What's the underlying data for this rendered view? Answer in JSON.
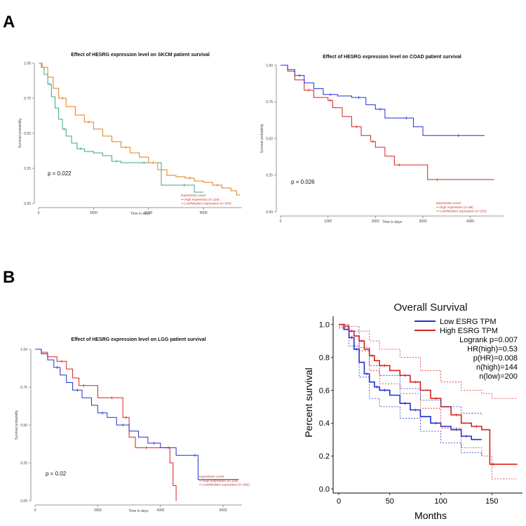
{
  "panels": {
    "a": "A",
    "b": "B"
  },
  "colors": {
    "orange": "#E07B1E",
    "teal": "#3AA68A",
    "blue": "#1F2FD1",
    "red": "#D52020",
    "axis": "#7a7a7a",
    "legend": "#C0392B"
  },
  "chart_data": [
    {
      "id": "skcm",
      "type": "line",
      "title": "Effect of HESRG expression level on SKCM patient survival",
      "xlabel": "Time in days",
      "ylabel": "Survival probability",
      "xlim": [
        0,
        11100
      ],
      "ylim": [
        0,
        1
      ],
      "xticks": [
        0,
        3000,
        6000,
        9000
      ],
      "yticks": [
        0,
        0.25,
        0.5,
        0.75,
        1.0
      ],
      "xtick_labels": [
        "0",
        "3000",
        "6000",
        "9000"
      ],
      "ytick_labels": [
        "0.00",
        "0.25",
        "0.50",
        "0.75",
        "1.00"
      ],
      "pvalue": "p = 0.022",
      "legend_title": "Expression Level",
      "legend": [
        "High expression (n=116)",
        "Low/Medium expression (n=343)"
      ],
      "series": [
        {
          "name": "High expression (n=116)",
          "color": "#3AA68A",
          "x": [
            0,
            150,
            300,
            500,
            700,
            900,
            1100,
            1300,
            1500,
            1800,
            2100,
            2500,
            3000,
            3500,
            4000,
            4500,
            5000,
            5500,
            6000,
            6600,
            6700,
            7500,
            8400,
            8500,
            9000
          ],
          "y": [
            1.0,
            0.97,
            0.92,
            0.85,
            0.76,
            0.68,
            0.6,
            0.53,
            0.48,
            0.43,
            0.39,
            0.37,
            0.36,
            0.34,
            0.3,
            0.29,
            0.29,
            0.29,
            0.29,
            0.29,
            0.13,
            0.13,
            0.13,
            0.08,
            0.08
          ]
        },
        {
          "name": "Low/Medium expression (n=343)",
          "color": "#E07B1E",
          "x": [
            0,
            200,
            500,
            800,
            1100,
            1500,
            2000,
            2500,
            3000,
            3500,
            4000,
            4500,
            5000,
            5500,
            6000,
            6500,
            7000,
            7500,
            8000,
            8500,
            9000,
            9500,
            10000,
            10500,
            10800,
            11000
          ],
          "y": [
            1.0,
            0.97,
            0.9,
            0.82,
            0.75,
            0.69,
            0.63,
            0.58,
            0.53,
            0.48,
            0.44,
            0.4,
            0.36,
            0.33,
            0.29,
            0.24,
            0.2,
            0.19,
            0.18,
            0.16,
            0.15,
            0.13,
            0.11,
            0.09,
            0.06,
            0.06
          ]
        }
      ]
    },
    {
      "id": "coad",
      "type": "line",
      "title": "Effect of HESRG expression level on COAD patient survival",
      "xlabel": "Time in days",
      "ylabel": "Survival probability",
      "xlim": [
        0,
        4700
      ],
      "ylim": [
        0,
        1
      ],
      "xticks": [
        0,
        1000,
        2000,
        3000,
        4000
      ],
      "yticks": [
        0,
        0.25,
        0.5,
        0.75,
        1.0
      ],
      "xtick_labels": [
        "0",
        "1000",
        "2000",
        "3000",
        "4000"
      ],
      "ytick_labels": [
        "0.00",
        "0.25",
        "0.50",
        "0.75",
        "1.00"
      ],
      "pvalue": "p = 0.026",
      "legend_title": "Expression Level",
      "legend": [
        "High expression (n=69)",
        "Low/Medium expression (n=210)"
      ],
      "series": [
        {
          "name": "High expression (n=69)",
          "color": "#D52020",
          "x": [
            0,
            150,
            300,
            500,
            700,
            900,
            1000,
            1100,
            1300,
            1500,
            1700,
            1900,
            2000,
            2200,
            2400,
            2600,
            3000,
            3100,
            3500,
            4000,
            4500
          ],
          "y": [
            1.0,
            0.96,
            0.9,
            0.83,
            0.78,
            0.78,
            0.76,
            0.71,
            0.65,
            0.58,
            0.52,
            0.48,
            0.44,
            0.38,
            0.32,
            0.32,
            0.32,
            0.22,
            0.22,
            0.22,
            0.22
          ]
        },
        {
          "name": "Low/Medium expression (n=210)",
          "color": "#1F2FD1",
          "x": [
            0,
            150,
            300,
            500,
            700,
            900,
            1200,
            1500,
            1800,
            2000,
            2200,
            2500,
            2800,
            3000,
            3500,
            4000,
            4300
          ],
          "y": [
            1.0,
            0.97,
            0.93,
            0.88,
            0.84,
            0.8,
            0.79,
            0.78,
            0.73,
            0.7,
            0.64,
            0.64,
            0.58,
            0.52,
            0.52,
            0.52,
            0.52
          ]
        }
      ]
    },
    {
      "id": "lgg",
      "type": "line",
      "title": "Effect of HESRG expression level on LGG patient survival",
      "xlabel": "Time in days",
      "ylabel": "Survival probability",
      "xlim": [
        0,
        6600
      ],
      "ylim": [
        0,
        1
      ],
      "xticks": [
        0,
        2000,
        4000,
        6000
      ],
      "yticks": [
        0,
        0.25,
        0.5,
        0.75,
        1.0
      ],
      "xtick_labels": [
        "0",
        "2000",
        "4000",
        "6000"
      ],
      "ytick_labels": [
        "0.00",
        "0.25",
        "0.50",
        "0.75",
        "1.00"
      ],
      "pvalue": "p = 0.02",
      "legend_title": "Expression Level",
      "legend": [
        "High expression (n=129)",
        "Low/Medium expression (n=382)"
      ],
      "series": [
        {
          "name": "High expression (n=129)",
          "color": "#D52020",
          "x": [
            0,
            200,
            400,
            700,
            1000,
            1200,
            1400,
            1700,
            2000,
            2300,
            2600,
            2800,
            3000,
            3200,
            3400,
            3700,
            4000,
            4200,
            4300,
            4400,
            4500
          ],
          "y": [
            1.0,
            0.98,
            0.95,
            0.92,
            0.87,
            0.81,
            0.76,
            0.76,
            0.68,
            0.68,
            0.68,
            0.55,
            0.42,
            0.35,
            0.35,
            0.35,
            0.35,
            0.35,
            0.25,
            0.1,
            0.0
          ]
        },
        {
          "name": "Low/Medium expression (n=382)",
          "color": "#1F2FD1",
          "x": [
            0,
            200,
            400,
            600,
            800,
            1000,
            1200,
            1500,
            1800,
            2000,
            2300,
            2600,
            3000,
            3300,
            3600,
            4000,
            4500,
            5000,
            5200,
            6000,
            6500
          ],
          "y": [
            1.0,
            0.97,
            0.93,
            0.88,
            0.83,
            0.78,
            0.73,
            0.68,
            0.63,
            0.58,
            0.55,
            0.5,
            0.46,
            0.42,
            0.38,
            0.35,
            0.3,
            0.3,
            0.14,
            0.14,
            0.14
          ]
        }
      ]
    },
    {
      "id": "gepia",
      "type": "line",
      "title": "Overall Survival",
      "xlabel": "Months",
      "ylabel": "Percent survival",
      "xlim": [
        0,
        180
      ],
      "ylim": [
        0,
        1.05
      ],
      "xticks": [
        0,
        50,
        100,
        150
      ],
      "yticks": [
        0,
        0.2,
        0.4,
        0.6,
        0.8,
        1.0
      ],
      "xtick_labels": [
        "0",
        "50",
        "100",
        "150"
      ],
      "ytick_labels": [
        "0.0",
        "0.2",
        "0.4",
        "0.6",
        "0.8",
        "1.0"
      ],
      "legend": [
        "Low ESRG TPM",
        "High ESRG TPM"
      ],
      "annotations": [
        "Logrank p=0.007",
        "HR(high)=0.53",
        "p(HR)=0.008",
        "n(high)=144",
        "n(low)=200"
      ],
      "series": [
        {
          "name": "Low ESRG TPM",
          "color": "#1F2FD1",
          "x": [
            0,
            5,
            10,
            15,
            20,
            25,
            30,
            35,
            40,
            50,
            60,
            70,
            80,
            90,
            100,
            110,
            120,
            130,
            140
          ],
          "y": [
            1.0,
            0.97,
            0.92,
            0.85,
            0.77,
            0.7,
            0.65,
            0.62,
            0.6,
            0.57,
            0.52,
            0.48,
            0.44,
            0.4,
            0.38,
            0.36,
            0.32,
            0.3,
            0.3
          ]
        },
        {
          "name": "High ESRG TPM",
          "color": "#D52020",
          "x": [
            0,
            5,
            10,
            15,
            20,
            25,
            30,
            35,
            40,
            50,
            60,
            70,
            80,
            90,
            100,
            110,
            120,
            130,
            140,
            148,
            155,
            175
          ],
          "y": [
            1.0,
            0.99,
            0.96,
            0.93,
            0.9,
            0.85,
            0.81,
            0.78,
            0.75,
            0.72,
            0.69,
            0.65,
            0.6,
            0.55,
            0.5,
            0.45,
            0.4,
            0.38,
            0.36,
            0.15,
            0.15,
            0.15
          ]
        },
        {
          "name": "Low CI upper",
          "color": "#1F2FD1",
          "dashed": true,
          "x": [
            0,
            10,
            20,
            30,
            40,
            60,
            80,
            100,
            120,
            140
          ],
          "y": [
            1.0,
            0.96,
            0.86,
            0.75,
            0.69,
            0.61,
            0.54,
            0.5,
            0.46,
            0.45
          ]
        },
        {
          "name": "Low CI lower",
          "color": "#1F2FD1",
          "dashed": true,
          "x": [
            0,
            10,
            20,
            30,
            40,
            60,
            80,
            100,
            120,
            140
          ],
          "y": [
            0.98,
            0.87,
            0.68,
            0.55,
            0.5,
            0.43,
            0.35,
            0.28,
            0.22,
            0.2
          ]
        },
        {
          "name": "High CI upper",
          "color": "#D52020",
          "dashed": true,
          "x": [
            0,
            10,
            20,
            30,
            40,
            60,
            80,
            100,
            120,
            140,
            150,
            175
          ],
          "y": [
            1.0,
            0.99,
            0.96,
            0.9,
            0.85,
            0.8,
            0.72,
            0.65,
            0.6,
            0.58,
            0.55,
            0.55
          ]
        },
        {
          "name": "High CI lower",
          "color": "#D52020",
          "dashed": true,
          "x": [
            0,
            10,
            20,
            30,
            40,
            60,
            80,
            100,
            120,
            140,
            150,
            175
          ],
          "y": [
            0.99,
            0.93,
            0.84,
            0.72,
            0.64,
            0.58,
            0.49,
            0.37,
            0.25,
            0.2,
            0.06,
            0.06
          ]
        }
      ]
    }
  ]
}
